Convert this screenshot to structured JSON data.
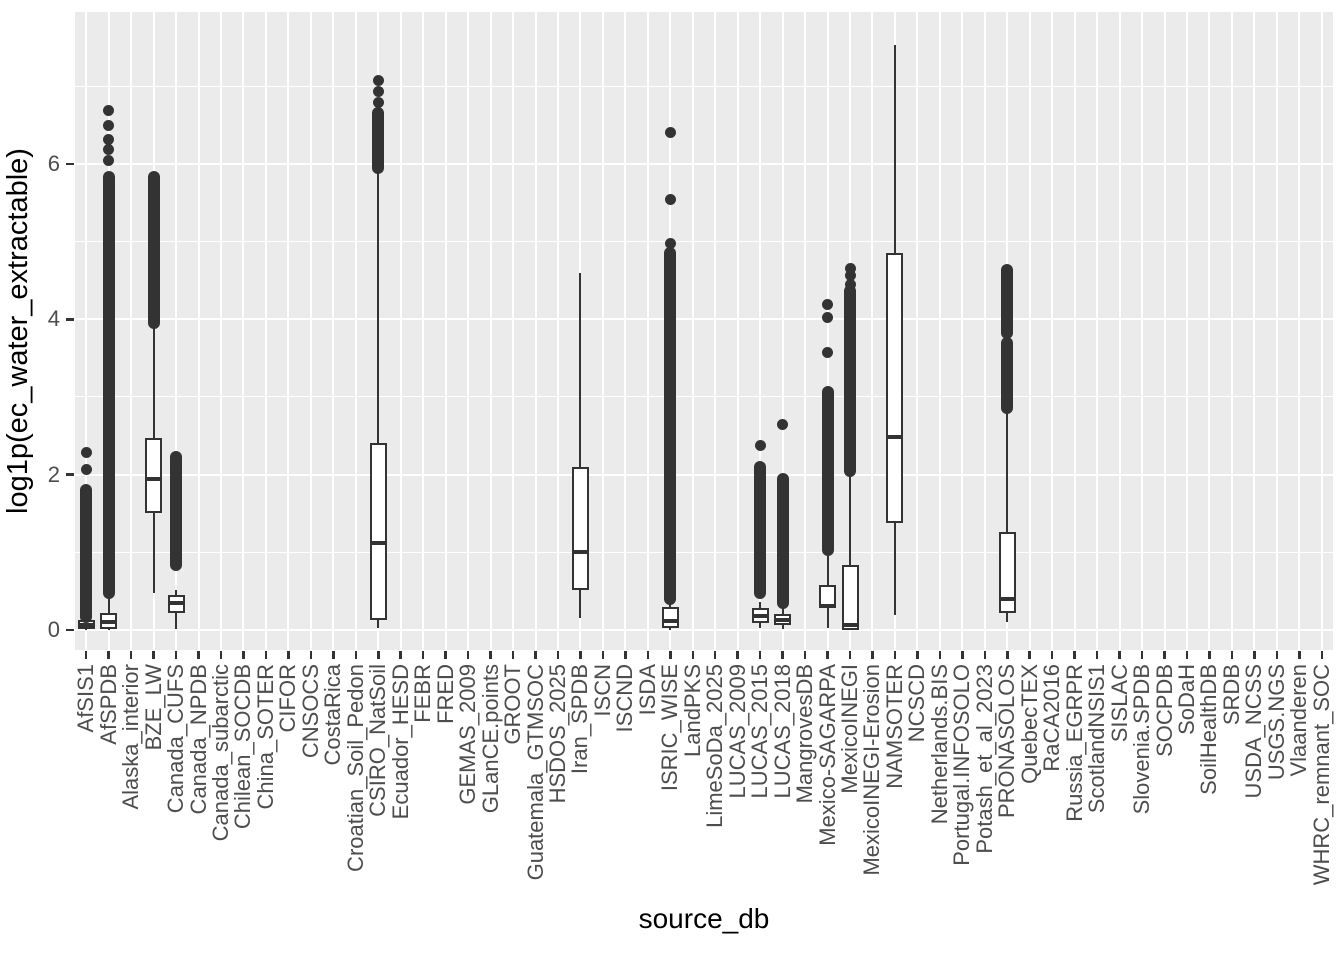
{
  "figure": {
    "xlabel": "source_db",
    "ylabel": "log1p(ec_water_extractable)"
  },
  "chart_data": {
    "type": "boxplot",
    "title": "",
    "xlabel": "source_db",
    "ylabel": "log1p(ec_water_extractable)",
    "ylim": [
      -0.26,
      7.96
    ],
    "yticks": [
      0,
      2,
      4,
      6
    ],
    "yminor": [
      1,
      3,
      5,
      7
    ],
    "grid": true,
    "legend": "none",
    "panel_bg": "#EBEBEB",
    "grid_color": "#FFFFFF",
    "box_color": "#333333",
    "axis_text_color": "#4D4D4D",
    "categories": [
      "AfSIS1",
      "AfSPDB",
      "Alaska_interior",
      "BZE_LW",
      "Canada_CUFS",
      "Canada_NPDB",
      "Canada_subarctic",
      "Chilean_SOCDB",
      "China_SOTER",
      "CIFOR",
      "CNSOCS",
      "CostaRica",
      "Croatian_Soil_Pedon",
      "CSIRO_NatSoil",
      "Ecuador_HESD",
      "FEBR",
      "FRED",
      "GEMAS_2009",
      "GLanCE.points",
      "GROOT",
      "Guatemala_GTMSOC",
      "HSDOS_2025",
      "Iran_SPDB",
      "ISCN",
      "ISCND",
      "ISDA",
      "ISRIC_WISE",
      "LandPKS",
      "LimeSoDa_2025",
      "LUCAS_2009",
      "LUCAS_2015",
      "LUCAS_2018",
      "MangrovesDB",
      "Mexico-SAGARPA",
      "MexicoINEGI",
      "MexicoINEGI-Erosion",
      "NAMSOTER",
      "NCSCD",
      "Netherlands.BIS",
      "Portugal.INFOSOLO",
      "Potash_et_al_2023",
      "PRONASOLOS",
      "QuebecTEX",
      "RaCA2016",
      "Russia_EGRPR",
      "ScotlandNSIS1",
      "SISLAC",
      "Slovenia.SPDB",
      "SOCPDB",
      "SoDaH",
      "SoilHealthDB",
      "SRDB",
      "USDA_NCSS",
      "USGS.NGS",
      "Vlaanderen",
      "WHRC_remnant_SOC"
    ],
    "boxes": [
      {
        "q1": 0.01,
        "med": 0.06,
        "q3": 0.13,
        "lo": 0.0,
        "hi": 0.16,
        "dense": [
          [
            0.17,
            1.8
          ]
        ],
        "dots": [
          2.06,
          2.29
        ]
      },
      {
        "q1": 0.01,
        "med": 0.1,
        "q3": 0.22,
        "lo": 0.0,
        "hi": 0.41,
        "dense": [
          [
            0.47,
            5.83
          ]
        ],
        "dots": [
          6.05,
          6.18,
          6.32,
          6.5,
          6.69
        ]
      },
      null,
      {
        "q1": 1.51,
        "med": 1.95,
        "q3": 2.47,
        "lo": 0.48,
        "hi": 3.89,
        "dense": [
          [
            3.95,
            5.83
          ]
        ],
        "dots": []
      },
      {
        "q1": 0.22,
        "med": 0.35,
        "q3": 0.45,
        "lo": 0.01,
        "hi": 0.51,
        "dense": [
          [
            0.84,
            2.23
          ]
        ],
        "dots": []
      },
      null,
      null,
      null,
      null,
      null,
      null,
      null,
      null,
      {
        "q1": 0.13,
        "med": 1.12,
        "q3": 2.41,
        "lo": 0.02,
        "hi": 5.9,
        "dense": [
          [
            5.95,
            6.65
          ]
        ],
        "dots": [
          6.79,
          6.93,
          7.08
        ]
      },
      null,
      null,
      null,
      null,
      null,
      null,
      null,
      null,
      {
        "q1": 0.51,
        "med": 1.0,
        "q3": 2.1,
        "lo": 0.15,
        "hi": 4.6,
        "dense": [],
        "dots": []
      },
      null,
      null,
      null,
      {
        "q1": 0.02,
        "med": 0.12,
        "q3": 0.3,
        "lo": 0.0,
        "hi": 0.35,
        "dense": [
          [
            0.4,
            4.85
          ]
        ],
        "dots": [
          4.98,
          5.54,
          6.4
        ]
      },
      null,
      null,
      null,
      {
        "q1": 0.09,
        "med": 0.18,
        "q3": 0.28,
        "lo": 0.02,
        "hi": 0.36,
        "dense": [
          [
            0.48,
            2.1
          ]
        ],
        "dots": [
          2.38
        ]
      },
      {
        "q1": 0.06,
        "med": 0.13,
        "q3": 0.21,
        "lo": 0.01,
        "hi": 0.3,
        "dense": [
          [
            0.35,
            1.95
          ]
        ],
        "dots": [
          2.64
        ]
      },
      null,
      {
        "q1": 0.28,
        "med": 0.31,
        "q3": 0.58,
        "lo": 0.03,
        "hi": 0.99,
        "dense": [
          [
            1.03,
            3.07
          ]
        ],
        "dots": [
          3.57,
          4.02,
          4.19
        ]
      },
      {
        "q1": 0.0,
        "med": 0.07,
        "q3": 0.84,
        "lo": 0.0,
        "hi": 2.02,
        "dense": [
          [
            2.05,
            4.36
          ]
        ],
        "dots": [
          4.45,
          4.56,
          4.65
        ]
      },
      null,
      {
        "q1": 1.38,
        "med": 2.49,
        "q3": 4.85,
        "lo": 0.19,
        "hi": 7.53,
        "dense": [],
        "dots": []
      },
      null,
      null,
      null,
      null,
      {
        "q1": 0.22,
        "med": 0.4,
        "q3": 1.26,
        "lo": 0.1,
        "hi": 2.81,
        "dense": [
          [
            2.86,
            3.7
          ],
          [
            3.82,
            4.64
          ]
        ],
        "dots": []
      },
      null,
      null,
      null,
      null,
      null,
      null,
      null,
      null,
      null,
      null,
      null,
      null,
      null,
      null
    ]
  }
}
